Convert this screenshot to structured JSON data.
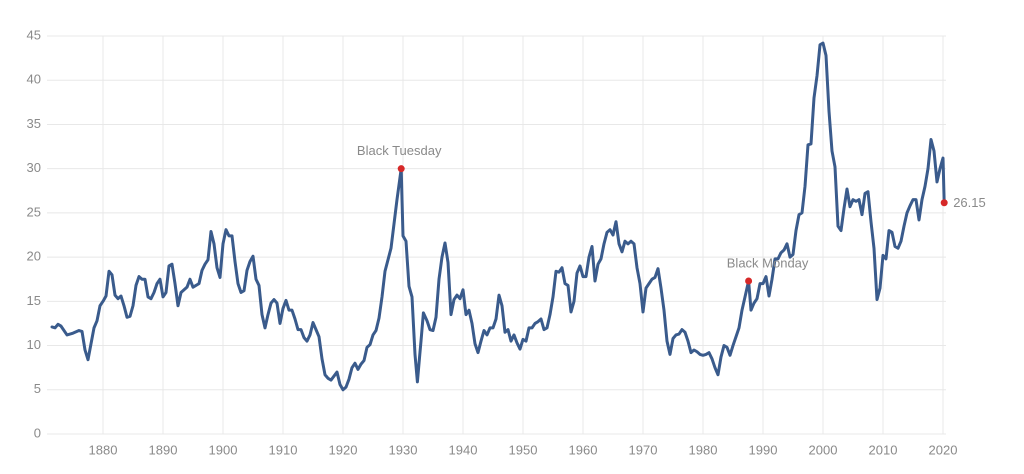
{
  "chart_data": {
    "type": "line",
    "xlim": [
      1871,
      2021
    ],
    "xticks": [
      1880,
      1890,
      1900,
      1910,
      1920,
      1930,
      1940,
      1950,
      1960,
      1970,
      1980,
      1990,
      2000,
      2010,
      2020
    ],
    "ylim": [
      0,
      45
    ],
    "yticks": [
      0,
      5,
      10,
      15,
      20,
      25,
      30,
      35,
      40,
      45
    ],
    "grid": true,
    "series": [
      {
        "color": "#3a5b8c",
        "x": [
          1871.5,
          1872,
          1872.5,
          1873,
          1874,
          1874.5,
          1875,
          1876,
          1876.5,
          1877,
          1877.5,
          1878,
          1878.5,
          1879,
          1879.5,
          1880,
          1880.5,
          1881,
          1881.5,
          1882,
          1882.5,
          1883,
          1883.5,
          1884,
          1884.5,
          1885,
          1885.5,
          1886,
          1886.5,
          1887,
          1887.5,
          1888,
          1888.5,
          1889,
          1889.5,
          1890,
          1890.5,
          1891,
          1891.5,
          1892,
          1892.5,
          1893,
          1894,
          1894.5,
          1895,
          1896,
          1896.5,
          1897,
          1897.5,
          1898,
          1898.5,
          1899,
          1899.5,
          1900,
          1900.5,
          1901,
          1901.5,
          1902,
          1902.5,
          1903,
          1903.5,
          1904,
          1904.5,
          1905,
          1905.5,
          1906,
          1906.5,
          1907,
          1907.5,
          1908,
          1908.5,
          1909,
          1909.5,
          1910,
          1910.5,
          1911,
          1911.5,
          1912,
          1912.5,
          1913,
          1913.5,
          1914,
          1914.5,
          1915,
          1915.5,
          1916,
          1916.5,
          1917,
          1917.5,
          1918,
          1919,
          1919.5,
          1920,
          1920.5,
          1921,
          1921.5,
          1922,
          1922.5,
          1923,
          1923.5,
          1924,
          1924.5,
          1925,
          1925.5,
          1926,
          1926.5,
          1927,
          1928,
          1929,
          1929.7,
          1930,
          1930.5,
          1931,
          1931.5,
          1932,
          1932.4,
          1932.8,
          1933,
          1933.4,
          1934,
          1934.5,
          1935,
          1935.5,
          1936,
          1936.5,
          1937,
          1937.5,
          1938,
          1938.5,
          1939,
          1939.5,
          1940,
          1940.5,
          1941,
          1941.5,
          1942,
          1942.5,
          1943,
          1943.5,
          1944,
          1944.5,
          1945,
          1945.5,
          1946,
          1946.5,
          1947,
          1947.5,
          1948,
          1948.5,
          1949,
          1949.5,
          1950,
          1950.5,
          1951,
          1951.5,
          1952,
          1952.5,
          1953,
          1953.5,
          1954,
          1954.5,
          1955,
          1955.5,
          1956,
          1956.5,
          1957,
          1957.5,
          1958,
          1958.5,
          1959,
          1959.5,
          1960,
          1960.5,
          1961,
          1961.5,
          1962,
          1962.5,
          1963,
          1963.5,
          1964,
          1964.5,
          1965,
          1965.5,
          1966,
          1966.5,
          1967,
          1967.5,
          1968,
          1968.5,
          1969,
          1969.5,
          1970,
          1970.5,
          1971,
          1971.5,
          1972,
          1972.5,
          1973,
          1973.5,
          1974,
          1974.5,
          1975,
          1975.5,
          1976,
          1976.5,
          1977,
          1977.5,
          1978,
          1978.5,
          1979,
          1979.5,
          1980,
          1980.5,
          1981,
          1981.5,
          1982,
          1982.5,
          1983,
          1983.5,
          1984,
          1984.5,
          1985,
          1985.5,
          1986,
          1986.5,
          1987,
          1987.6,
          1988,
          1988.5,
          1989,
          1989.5,
          1990,
          1990.5,
          1991,
          1991.5,
          1992,
          1992.5,
          1993,
          1993.5,
          1994,
          1994.5,
          1995,
          1995.5,
          1996,
          1996.5,
          1997,
          1997.5,
          1998,
          1998.5,
          1999,
          1999.5,
          2000,
          2000.5,
          2001,
          2001.5,
          2002,
          2002.5,
          2003,
          2003.5,
          2004,
          2004.5,
          2005,
          2005.5,
          2006,
          2006.5,
          2007,
          2007.5,
          2008,
          2008.5,
          2009,
          2009.5,
          2010,
          2010.5,
          2011,
          2011.5,
          2012,
          2012.5,
          2013,
          2013.5,
          2014,
          2014.5,
          2015,
          2015.5,
          2016,
          2016.5,
          2017,
          2017.5,
          2018,
          2018.5,
          2019,
          2019.5,
          2020,
          2020.2
        ],
        "values": [
          12.1,
          12.0,
          12.4,
          12.2,
          11.2,
          11.3,
          11.4,
          11.7,
          11.6,
          9.5,
          8.4,
          10.2,
          12.0,
          12.8,
          14.5,
          15.0,
          15.6,
          18.4,
          18.0,
          15.7,
          15.3,
          15.6,
          14.5,
          13.2,
          13.3,
          14.5,
          16.8,
          17.8,
          17.5,
          17.5,
          15.5,
          15.3,
          16.0,
          17.0,
          17.5,
          15.5,
          16.0,
          19.0,
          19.2,
          17.0,
          14.5,
          16.0,
          16.6,
          17.5,
          16.6,
          17.0,
          18.5,
          19.2,
          19.7,
          22.9,
          21.5,
          18.8,
          17.7,
          21.5,
          23.1,
          22.4,
          22.4,
          19.5,
          17.0,
          16.0,
          16.2,
          18.5,
          19.5,
          20.1,
          17.5,
          16.8,
          13.5,
          12.0,
          13.5,
          14.8,
          15.2,
          14.8,
          12.5,
          14.2,
          15.1,
          14.0,
          14.0,
          13.0,
          11.8,
          11.8,
          10.9,
          10.5,
          11.2,
          12.6,
          11.8,
          11.0,
          8.5,
          6.7,
          6.3,
          6.1,
          7.0,
          5.6,
          5.0,
          5.3,
          6.2,
          7.5,
          8.0,
          7.3,
          7.9,
          8.3,
          9.8,
          10.1,
          11.2,
          11.7,
          13.1,
          15.5,
          18.4,
          21.0,
          26.5,
          30.0,
          22.4,
          21.8,
          16.7,
          15.5,
          9.0,
          5.9,
          9.0,
          10.5,
          13.7,
          12.8,
          11.8,
          11.7,
          13.2,
          17.5,
          20.0,
          21.6,
          19.4,
          13.5,
          15.2,
          15.7,
          15.3,
          16.3,
          13.5,
          14.0,
          12.5,
          10.2,
          9.2,
          10.5,
          11.7,
          11.2,
          12.0,
          12.0,
          13.0,
          15.7,
          14.5,
          11.5,
          11.8,
          10.5,
          11.2,
          10.3,
          9.6,
          10.7,
          10.5,
          12.0,
          12.0,
          12.5,
          12.7,
          13.0,
          11.8,
          12.0,
          13.5,
          15.5,
          18.4,
          18.3,
          18.8,
          17.0,
          16.8,
          13.8,
          15.0,
          18.2,
          19.0,
          17.8,
          17.8,
          20.0,
          21.2,
          17.3,
          19.2,
          19.8,
          21.5,
          22.8,
          23.1,
          22.5,
          24.0,
          21.5,
          20.6,
          21.8,
          21.5,
          21.8,
          21.5,
          18.8,
          17.0,
          13.8,
          16.5,
          17.0,
          17.5,
          17.7,
          18.7,
          16.5,
          14.0,
          10.5,
          9.0,
          10.8,
          11.2,
          11.3,
          11.8,
          11.5,
          10.5,
          9.2,
          9.5,
          9.3,
          9.0,
          8.9,
          9.0,
          9.2,
          8.5,
          7.5,
          6.7,
          8.7,
          10.0,
          9.8,
          8.9,
          10.0,
          11.0,
          12.0,
          14.0,
          15.5,
          17.3,
          14.0,
          14.8,
          15.3,
          17.0,
          17.0,
          17.8,
          15.6,
          17.5,
          19.8,
          19.8,
          20.5,
          20.8,
          21.5,
          20.0,
          20.3,
          23.0,
          24.8,
          25.0,
          28.0,
          32.7,
          32.8,
          38.0,
          40.5,
          44.0,
          44.2,
          42.8,
          36.5,
          32.0,
          30.2,
          23.5,
          23.0,
          25.5,
          27.7,
          25.7,
          26.5,
          26.3,
          26.5,
          24.8,
          27.2,
          27.4,
          24.0,
          21.0,
          15.2,
          16.5,
          20.2,
          19.8,
          23.0,
          22.8,
          21.2,
          21.0,
          21.8,
          23.5,
          25.0,
          25.8,
          26.5,
          26.5,
          24.2,
          26.5,
          28.0,
          30.0,
          33.3,
          32.0,
          28.5,
          30.0,
          31.2,
          26.15
        ]
      }
    ],
    "annotations": [
      {
        "label": "Black Tuesday",
        "x": 1929.7,
        "y": 30.0,
        "color": "#d62828"
      },
      {
        "label": "Black Monday",
        "x": 1987.6,
        "y": 17.3,
        "color": "#d62828"
      }
    ]
  }
}
